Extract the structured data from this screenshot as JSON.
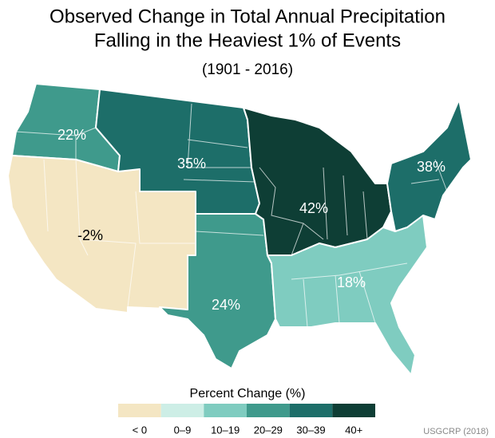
{
  "title": [
    "Observed Change in Total Annual Precipitation",
    "Falling in the Heaviest 1% of Events"
  ],
  "subtitle": "(1901 - 2016)",
  "regions": [
    {
      "value": 22,
      "label": "22%",
      "color": "#3f9a8c"
    },
    {
      "value": -2,
      "label": "-2%",
      "color": "#f4e6c3"
    },
    {
      "value": 35,
      "label": "35%",
      "color": "#1d6e69"
    },
    {
      "value": 24,
      "label": "24%",
      "color": "#3f9a8c"
    },
    {
      "value": 42,
      "label": "42%",
      "color": "#0e3e35"
    },
    {
      "value": 38,
      "label": "38%",
      "color": "#1d6e69"
    },
    {
      "value": 18,
      "label": "18%",
      "color": "#7fccc0"
    }
  ],
  "legend": {
    "title": "Percent Change (%)",
    "items": [
      {
        "label": "< 0",
        "color": "#f4e6c3"
      },
      {
        "label": "0–9",
        "color": "#cdeee6"
      },
      {
        "label": "10–19",
        "color": "#7fccc0"
      },
      {
        "label": "20–29",
        "color": "#3f9a8c"
      },
      {
        "label": "30–39",
        "color": "#1d6e69"
      },
      {
        "label": "40+",
        "color": "#0e3e35"
      }
    ]
  },
  "source": "USGCRP (2018)"
}
